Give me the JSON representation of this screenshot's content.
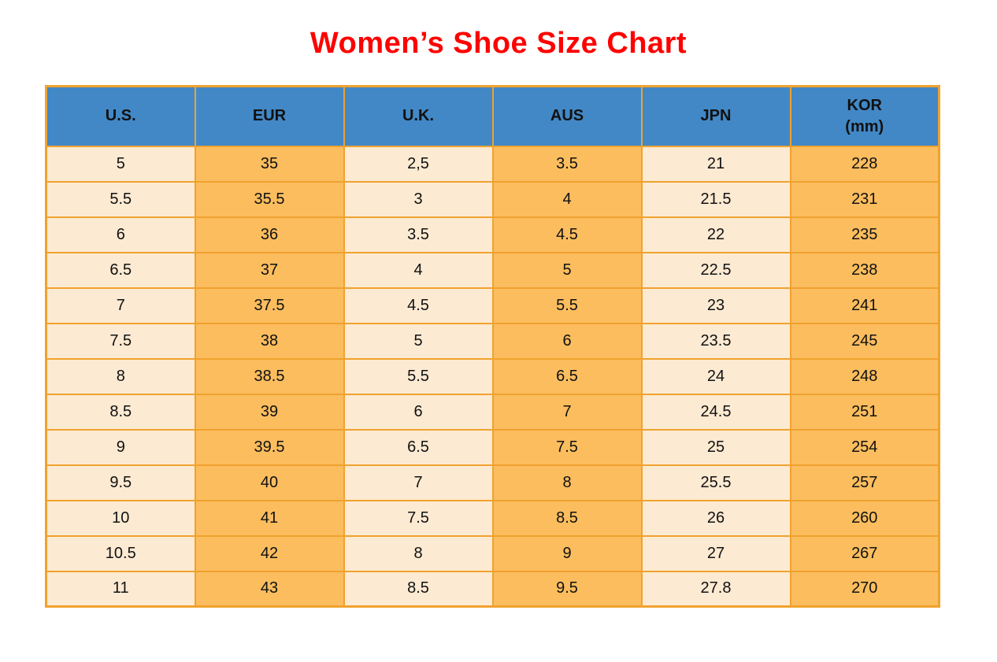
{
  "page_title": "Women’s Shoe Size Chart",
  "colors": {
    "title-red": "#FF0000",
    "header-blue": "#4288C6",
    "cell-cream": "#FDEAD2",
    "cell-orange": "#FBBD5E",
    "border-orange": "#F0A22E",
    "text-black": "#111111"
  },
  "table": {
    "headers": [
      {
        "key": "us",
        "lines": [
          "U.S."
        ]
      },
      {
        "key": "eur",
        "lines": [
          "EUR"
        ]
      },
      {
        "key": "uk",
        "lines": [
          "U.K."
        ]
      },
      {
        "key": "aus",
        "lines": [
          "AUS"
        ]
      },
      {
        "key": "jpn",
        "lines": [
          "JPN"
        ]
      },
      {
        "key": "kor",
        "lines": [
          "KOR",
          "(mm)"
        ]
      }
    ],
    "rows": [
      [
        "5",
        "35",
        "2,5",
        "3.5",
        "21",
        "228"
      ],
      [
        "5.5",
        "35.5",
        "3",
        "4",
        "21.5",
        "231"
      ],
      [
        "6",
        "36",
        "3.5",
        "4.5",
        "22",
        "235"
      ],
      [
        "6.5",
        "37",
        "4",
        "5",
        "22.5",
        "238"
      ],
      [
        "7",
        "37.5",
        "4.5",
        "5.5",
        "23",
        "241"
      ],
      [
        "7.5",
        "38",
        "5",
        "6",
        "23.5",
        "245"
      ],
      [
        "8",
        "38.5",
        "5.5",
        "6.5",
        "24",
        "248"
      ],
      [
        "8.5",
        "39",
        "6",
        "7",
        "24.5",
        "251"
      ],
      [
        "9",
        "39.5",
        "6.5",
        "7.5",
        "25",
        "254"
      ],
      [
        "9.5",
        "40",
        "7",
        "8",
        "25.5",
        "257"
      ],
      [
        "10",
        "41",
        "7.5",
        "8.5",
        "26",
        "260"
      ],
      [
        "10.5",
        "42",
        "8",
        "9",
        "27",
        "267"
      ],
      [
        "11",
        "43",
        "8.5",
        "9.5",
        "27.8",
        "270"
      ]
    ]
  },
  "chart_data": {
    "type": "table",
    "title": "Women’s Shoe Size Chart",
    "columns": [
      "U.S.",
      "EUR",
      "U.K.",
      "AUS",
      "JPN",
      "KOR (mm)"
    ],
    "rows": [
      [
        "5",
        "35",
        "2,5",
        "3.5",
        "21",
        "228"
      ],
      [
        "5.5",
        "35.5",
        "3",
        "4",
        "21.5",
        "231"
      ],
      [
        "6",
        "36",
        "3.5",
        "4.5",
        "22",
        "235"
      ],
      [
        "6.5",
        "37",
        "4",
        "5",
        "22.5",
        "238"
      ],
      [
        "7",
        "37.5",
        "4.5",
        "5.5",
        "23",
        "241"
      ],
      [
        "7.5",
        "38",
        "5",
        "6",
        "23.5",
        "245"
      ],
      [
        "8",
        "38.5",
        "5.5",
        "6.5",
        "24",
        "248"
      ],
      [
        "8.5",
        "39",
        "6",
        "7",
        "24.5",
        "251"
      ],
      [
        "9",
        "39.5",
        "6.5",
        "7.5",
        "25",
        "254"
      ],
      [
        "9.5",
        "40",
        "7",
        "8",
        "25.5",
        "257"
      ],
      [
        "10",
        "41",
        "7.5",
        "8.5",
        "26",
        "260"
      ],
      [
        "10.5",
        "42",
        "8",
        "9",
        "27",
        "267"
      ],
      [
        "11",
        "43",
        "8.5",
        "9.5",
        "27.8",
        "270"
      ]
    ],
    "layout_hints": {
      "header_style": "blue background, bold black text",
      "column_fill_alternation": [
        "cream",
        "orange",
        "cream",
        "orange",
        "cream",
        "orange"
      ],
      "grid": "orange borders on all cells"
    }
  }
}
